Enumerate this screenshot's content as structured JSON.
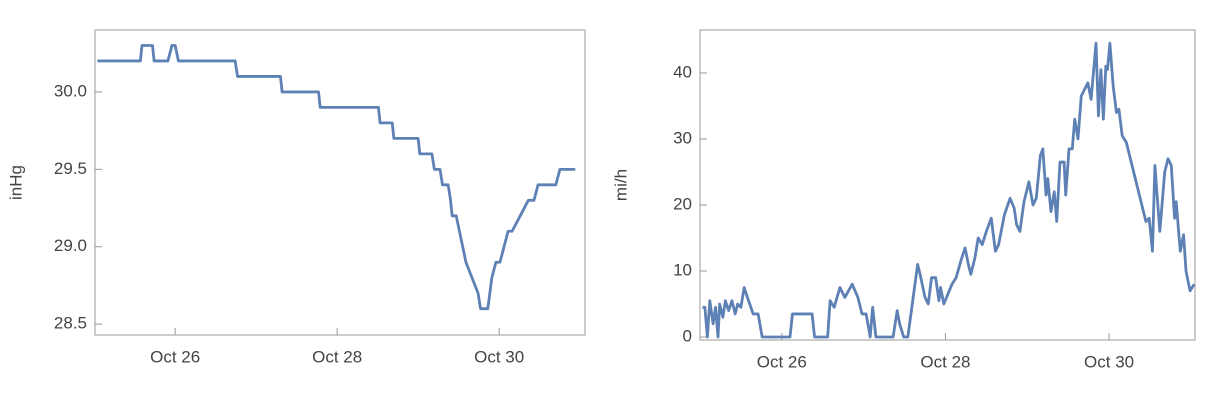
{
  "chart_data": [
    {
      "type": "line",
      "y_label": "inHg",
      "color": "#5e81b5",
      "xlim": [
        25.01,
        31.06
      ],
      "ylim": [
        28.43,
        30.4
      ],
      "xticks": [
        {
          "value": 26,
          "label": "Oct 26"
        },
        {
          "value": 28,
          "label": "Oct 28"
        },
        {
          "value": 30,
          "label": "Oct 30"
        }
      ],
      "yticks": [
        28.5,
        {
          "value": 29.0,
          "label": "29.0"
        },
        29.5,
        {
          "value": 30.0,
          "label": "30.0"
        }
      ],
      "x": [
        25.04,
        25.57,
        25.59,
        25.72,
        25.74,
        25.91,
        25.96,
        26.0,
        26.04,
        26.74,
        26.77,
        27.3,
        27.32,
        27.77,
        27.79,
        28.51,
        28.53,
        28.68,
        28.7,
        29.0,
        29.02,
        29.17,
        29.2,
        29.27,
        29.3,
        29.37,
        29.4,
        29.42,
        29.47,
        29.59,
        29.74,
        29.77,
        29.86,
        29.91,
        29.96,
        30.01,
        30.06,
        30.11,
        30.16,
        30.26,
        30.36,
        30.43,
        30.48,
        30.7,
        30.75,
        30.94
      ],
      "values": [
        30.2,
        30.2,
        30.3,
        30.3,
        30.2,
        30.2,
        30.3,
        30.3,
        30.2,
        30.2,
        30.1,
        30.1,
        30.0,
        30.0,
        29.9,
        29.9,
        29.8,
        29.8,
        29.7,
        29.7,
        29.6,
        29.6,
        29.5,
        29.5,
        29.4,
        29.4,
        29.3,
        29.2,
        29.2,
        28.9,
        28.7,
        28.6,
        28.6,
        28.8,
        28.9,
        28.9,
        29.0,
        29.1,
        29.1,
        29.2,
        29.3,
        29.3,
        29.4,
        29.4,
        29.5,
        29.5
      ]
    },
    {
      "type": "line",
      "y_label": "mi/h",
      "color": "#5e81b5",
      "xlim": [
        25.0,
        31.05
      ],
      "ylim": [
        -0.45,
        46.5
      ],
      "xticks": [
        {
          "value": 26,
          "label": "Oct 26"
        },
        {
          "value": 28,
          "label": "Oct 28"
        },
        {
          "value": 30,
          "label": "Oct 30"
        }
      ],
      "yticks": [
        0,
        10,
        20,
        30,
        40
      ],
      "x": [
        25.03,
        25.06,
        25.09,
        25.12,
        25.16,
        25.19,
        25.22,
        25.24,
        25.28,
        25.31,
        25.35,
        25.39,
        25.43,
        25.46,
        25.5,
        25.54,
        25.58,
        25.65,
        25.71,
        25.76,
        26.1,
        26.13,
        26.37,
        26.4,
        26.56,
        26.59,
        26.64,
        26.71,
        26.77,
        26.86,
        26.93,
        26.98,
        27.03,
        27.08,
        27.11,
        27.15,
        27.36,
        27.41,
        27.44,
        27.49,
        27.54,
        27.66,
        27.69,
        27.75,
        27.79,
        27.83,
        27.88,
        27.92,
        27.94,
        27.98,
        28.08,
        28.13,
        28.2,
        28.24,
        28.28,
        28.31,
        28.36,
        28.4,
        28.45,
        28.5,
        28.56,
        28.61,
        28.65,
        28.72,
        28.79,
        28.84,
        28.87,
        28.91,
        28.96,
        29.02,
        29.07,
        29.11,
        29.16,
        29.19,
        29.23,
        29.25,
        29.29,
        29.33,
        29.36,
        29.4,
        29.45,
        29.47,
        29.51,
        29.55,
        29.58,
        29.62,
        29.66,
        29.74,
        29.78,
        29.84,
        29.87,
        29.9,
        29.93,
        29.96,
        29.98,
        30.01,
        30.05,
        30.09,
        30.12,
        30.16,
        30.21,
        30.26,
        30.36,
        30.45,
        30.49,
        30.53,
        30.56,
        30.62,
        30.68,
        30.72,
        30.76,
        30.8,
        30.82,
        30.87,
        30.91,
        30.94,
        30.99,
        31.04
      ],
      "values": [
        4.5,
        4.5,
        0,
        5.5,
        2,
        4.5,
        0,
        5,
        3,
        5.5,
        4,
        5.5,
        3.5,
        5,
        4.5,
        7.5,
        6,
        3.5,
        3.5,
        0,
        0,
        3.5,
        3.5,
        0,
        0,
        5.5,
        4.5,
        7.5,
        6,
        8,
        6,
        3.5,
        3.5,
        0,
        4.5,
        0,
        0,
        4,
        2,
        0,
        0,
        11,
        9.5,
        6,
        5,
        9,
        9,
        5.5,
        7.5,
        5,
        8,
        9,
        12,
        13.5,
        11,
        9.5,
        12,
        15,
        14,
        16,
        18,
        13,
        14,
        18.5,
        21,
        19.5,
        17,
        16,
        20.5,
        23.5,
        20,
        21,
        27.5,
        28.5,
        21.5,
        24,
        19,
        22,
        17.5,
        26.5,
        26.5,
        21.5,
        28.5,
        28.5,
        33,
        30,
        36.5,
        38.5,
        36,
        44.5,
        33.5,
        40.5,
        33,
        41,
        40.5,
        44.5,
        38,
        34,
        34.5,
        30.5,
        29.5,
        27,
        22,
        17.5,
        18,
        13,
        26,
        16,
        25,
        27,
        26,
        18,
        20.5,
        13,
        15.5,
        10,
        7,
        8
      ]
    }
  ]
}
